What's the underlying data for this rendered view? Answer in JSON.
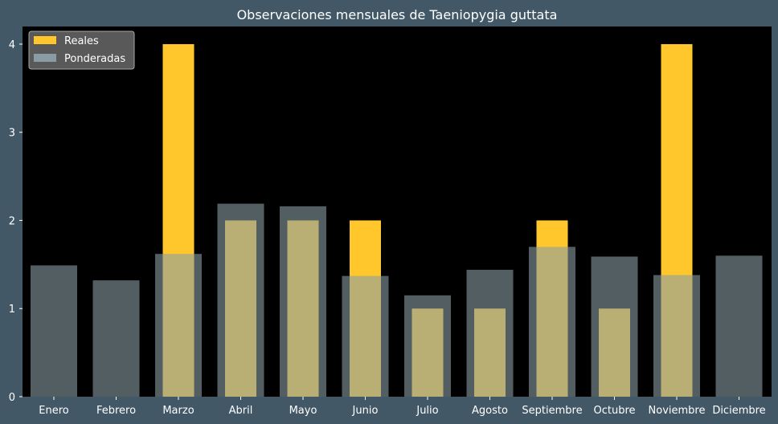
{
  "chart_data": {
    "type": "bar",
    "title": "Observaciones mensuales de Taeniopygia guttata",
    "xlabel": "",
    "ylabel": "",
    "categories": [
      "Enero",
      "Febrero",
      "Marzo",
      "Abril",
      "Mayo",
      "Junio",
      "Julio",
      "Agosto",
      "Septiembre",
      "Octubre",
      "Noviembre",
      "Diciembre"
    ],
    "series": [
      {
        "name": "Reales",
        "color": "#ffc72c",
        "values": [
          0,
          0,
          4,
          2,
          2,
          2,
          1,
          1,
          2,
          1,
          4,
          0
        ]
      },
      {
        "name": "Ponderadas",
        "color": "#8a9ca3",
        "opacity": 0.6,
        "values": [
          1.49,
          1.32,
          1.62,
          2.19,
          2.16,
          1.37,
          1.15,
          1.44,
          1.7,
          1.59,
          1.38,
          1.6
        ]
      }
    ],
    "ylim": [
      0,
      4.2
    ],
    "yticks": [
      0,
      1,
      2,
      3,
      4
    ],
    "grid": false,
    "legend_position": "top-left",
    "colors": {
      "figure_background": "#425866",
      "plot_background": "#000000",
      "text": "#ffffff"
    }
  }
}
